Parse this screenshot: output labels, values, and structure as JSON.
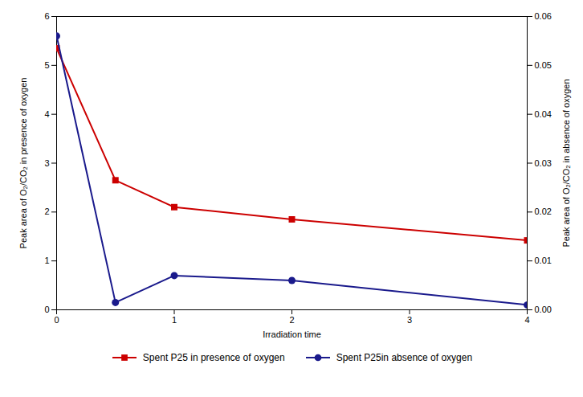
{
  "chart_data": {
    "type": "line",
    "xlabel": "Irradiation time",
    "ylabel": "Peak area of O₂/CO₂ in presence of oxygen",
    "y2label": "Peak area of O₂/CO₂ in absence of oxygen",
    "x": [
      0,
      0.5,
      1,
      2,
      4
    ],
    "series": [
      {
        "name": "Spent P25 in presence of oxygen",
        "color": "#cc0000",
        "marker": "square",
        "line_style": "solid",
        "values": [
          5.35,
          2.65,
          2.1,
          1.85,
          1.42
        ]
      },
      {
        "name": "Spent P25in absence of oxygen",
        "color": "#1a1a8c",
        "marker": "circle",
        "line_style": "solid",
        "axis": "y2",
        "values": [
          0.056,
          0.0015,
          0.007,
          0.006,
          0.001
        ]
      }
    ],
    "xlim": [
      0,
      4
    ],
    "xticks": [
      0,
      1,
      2,
      3,
      4
    ],
    "ylim": [
      0,
      6
    ],
    "yticks": [
      0,
      1,
      2,
      3,
      4,
      5,
      6
    ],
    "y2lim": [
      0,
      0.06
    ],
    "y2ticks": [
      {
        "value": 0,
        "label": "0.00"
      },
      0.01,
      0.02,
      0.03,
      0.04,
      0.05,
      0.06
    ],
    "grid": false,
    "legend": "bottom"
  }
}
